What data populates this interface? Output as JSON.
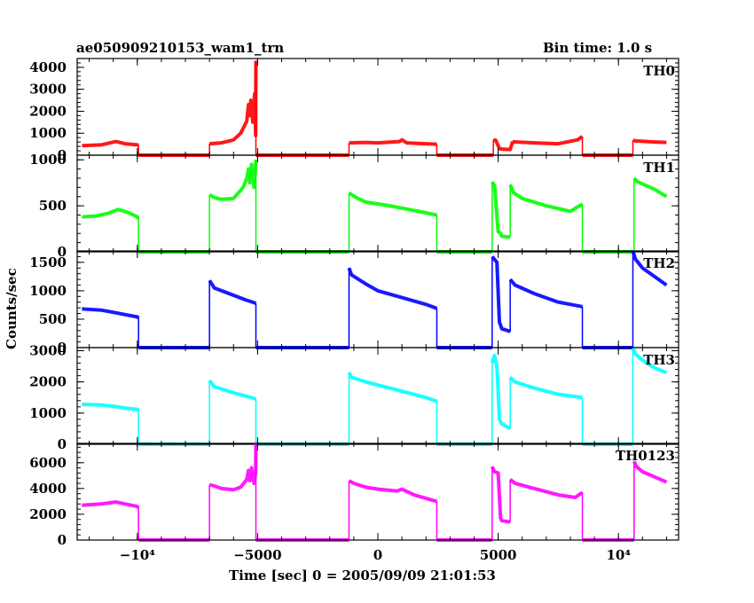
{
  "header": {
    "title": "ae050909210153_wam1_trn",
    "bin_time": "Bin time: 1.0 s"
  },
  "axes": {
    "xlabel": "Time [sec] 0 = 2005/09/09 21:01:53",
    "ylabel": "Counts/sec"
  },
  "colors": {
    "TH0": "#ff0000",
    "TH1": "#00ff00",
    "TH2": "#0000ff",
    "TH3": "#00ffff",
    "TH0123": "#ff00ff",
    "axis": "#000000"
  },
  "chart_data": {
    "type": "line",
    "xlim": [
      -12500,
      12500
    ],
    "x_tick_labels": [
      "−10⁴",
      "−5000",
      "0",
      "5000",
      "10⁴"
    ],
    "x_ticks": [
      -10000,
      -5000,
      0,
      5000,
      10000
    ],
    "panels": [
      {
        "name": "TH0",
        "color": "#ff0000",
        "ylim": [
          0,
          4400
        ],
        "y_ticks": [
          0,
          1000,
          2000,
          3000,
          4000
        ],
        "series": [
          {
            "x": [
              -12300,
              -11500,
              -10900,
              -10500,
              -10000,
              -9950
            ],
            "y": [
              430,
              470,
              620,
              520,
              470,
              450
            ]
          },
          {
            "x": [
              -9950,
              -7000
            ],
            "y": [
              0,
              0
            ]
          },
          {
            "x": [
              -7000,
              -6500,
              -6000,
              -5700,
              -5450,
              -5380,
              -5330,
              -5280,
              -5200,
              -5120,
              -5080,
              -5070
            ],
            "y": [
              520,
              560,
              700,
              1000,
              1550,
              2300,
              1800,
              2500,
              1500,
              2800,
              900,
              4300
            ]
          },
          {
            "x": [
              -5070,
              -1200
            ],
            "y": [
              0,
              0
            ]
          },
          {
            "x": [
              -1200,
              -500,
              0,
              900,
              1000,
              1200,
              2000,
              2450
            ],
            "y": [
              560,
              580,
              560,
              620,
              700,
              560,
              520,
              500
            ]
          },
          {
            "x": [
              2450,
              4800
            ],
            "y": [
              0,
              0
            ]
          },
          {
            "x": [
              4800,
              4900,
              5050,
              5150,
              5500,
              5600
            ],
            "y": [
              700,
              680,
              300,
              280,
              260,
              620
            ]
          },
          {
            "x": [
              5600,
              6500,
              7500,
              8300,
              8500
            ],
            "y": [
              610,
              560,
              520,
              700,
              850
            ]
          },
          {
            "x": [
              8500,
              10600
            ],
            "y": [
              0,
              0
            ]
          },
          {
            "x": [
              10600,
              10700,
              11500,
              12000
            ],
            "y": [
              680,
              650,
              600,
              580
            ]
          }
        ]
      },
      {
        "name": "TH1",
        "color": "#00ff00",
        "ylim": [
          0,
          1050
        ],
        "y_ticks": [
          0,
          500,
          1000
        ],
        "series": [
          {
            "x": [
              -12300,
              -11700,
              -11200,
              -10800,
              -10400,
              -10000,
              -9950
            ],
            "y": [
              380,
              390,
              420,
              460,
              430,
              380,
              360
            ]
          },
          {
            "x": [
              -9950,
              -7000
            ],
            "y": [
              0,
              0
            ]
          },
          {
            "x": [
              -7000,
              -6800,
              -6500,
              -6000,
              -5800,
              -5600,
              -5450,
              -5380,
              -5330,
              -5250,
              -5150,
              -5100,
              -5070
            ],
            "y": [
              620,
              590,
              570,
              580,
              640,
              700,
              800,
              900,
              750,
              950,
              700,
              860,
              1000
            ]
          },
          {
            "x": [
              -5070,
              -1200
            ],
            "y": [
              0,
              0
            ]
          },
          {
            "x": [
              -1200,
              -900,
              -500,
              0,
              500,
              1500,
              2450
            ],
            "y": [
              640,
              590,
              540,
              520,
              500,
              450,
              400
            ]
          },
          {
            "x": [
              2450,
              4750
            ],
            "y": [
              0,
              0
            ]
          },
          {
            "x": [
              4750,
              4850,
              5000,
              5100,
              5150,
              5500
            ],
            "y": [
              760,
              720,
              220,
              200,
              170,
              160
            ]
          },
          {
            "x": [
              5500,
              5650,
              6000,
              7000,
              8000,
              8500
            ],
            "y": [
              730,
              640,
              580,
              500,
              440,
              520
            ]
          },
          {
            "x": [
              8500,
              10650
            ],
            "y": [
              0,
              0
            ]
          },
          {
            "x": [
              10650,
              10800,
              11500,
              12000
            ],
            "y": [
              800,
              760,
              680,
              600
            ]
          }
        ]
      },
      {
        "name": "TH2",
        "color": "#0000ff",
        "ylim": [
          0,
          1700
        ],
        "y_ticks": [
          0,
          500,
          1000,
          1500
        ],
        "series": [
          {
            "x": [
              -12300,
              -11500,
              -11000,
              -10500,
              -10000,
              -9950
            ],
            "y": [
              680,
              660,
              620,
              580,
              540,
              520
            ]
          },
          {
            "x": [
              -9950,
              -7000
            ],
            "y": [
              0,
              0
            ]
          },
          {
            "x": [
              -7000,
              -6800,
              -6000,
              -5500,
              -5070
            ],
            "y": [
              1180,
              1050,
              920,
              840,
              780
            ]
          },
          {
            "x": [
              -5070,
              -1200
            ],
            "y": [
              0,
              0
            ]
          },
          {
            "x": [
              -1200,
              -1100,
              -500,
              0,
              1000,
              2000,
              2450
            ],
            "y": [
              1400,
              1280,
              1120,
              1000,
              880,
              760,
              690
            ]
          },
          {
            "x": [
              2450,
              4750
            ],
            "y": [
              0,
              0
            ]
          },
          {
            "x": [
              4750,
              4850,
              4950,
              5050,
              5150,
              5400,
              5500
            ],
            "y": [
              1600,
              1550,
              1500,
              450,
              330,
              300,
              280
            ]
          },
          {
            "x": [
              5500,
              5700,
              6500,
              7500,
              8500
            ],
            "y": [
              1200,
              1100,
              950,
              800,
              720
            ]
          },
          {
            "x": [
              8500,
              10600
            ],
            "y": [
              0,
              0
            ]
          },
          {
            "x": [
              10600,
              10700,
              11000,
              11500,
              12000
            ],
            "y": [
              1700,
              1560,
              1400,
              1250,
              1100
            ]
          }
        ]
      },
      {
        "name": "TH3",
        "color": "#00ffff",
        "ylim": [
          0,
          3100
        ],
        "y_ticks": [
          0,
          1000,
          2000,
          3000
        ],
        "series": [
          {
            "x": [
              -12300,
              -11500,
              -11000,
              -10500,
              -10000,
              -9950
            ],
            "y": [
              1280,
              1260,
              1220,
              1160,
              1120,
              1080
            ]
          },
          {
            "x": [
              -9950,
              -7000
            ],
            "y": [
              0,
              0
            ]
          },
          {
            "x": [
              -7000,
              -6800,
              -6000,
              -5500,
              -5070
            ],
            "y": [
              2050,
              1850,
              1650,
              1550,
              1450
            ]
          },
          {
            "x": [
              -5070,
              -1200
            ],
            "y": [
              0,
              0
            ]
          },
          {
            "x": [
              -1200,
              -1100,
              -500,
              0,
              1000,
              2000,
              2450
            ],
            "y": [
              2300,
              2150,
              2000,
              1900,
              1700,
              1500,
              1380
            ]
          },
          {
            "x": [
              2450,
              4750
            ],
            "y": [
              0,
              0
            ]
          },
          {
            "x": [
              4750,
              4850,
              4950,
              5050,
              5150,
              5400,
              5500
            ],
            "y": [
              2600,
              2850,
              2500,
              800,
              650,
              550,
              500
            ]
          },
          {
            "x": [
              5500,
              5700,
              6500,
              7500,
              8500
            ],
            "y": [
              2150,
              2000,
              1800,
              1600,
              1500
            ]
          },
          {
            "x": [
              8500,
              10600
            ],
            "y": [
              0,
              0
            ]
          },
          {
            "x": [
              10600,
              10700,
              11000,
              11500,
              12000
            ],
            "y": [
              3100,
              2900,
              2700,
              2450,
              2300
            ]
          }
        ]
      },
      {
        "name": "TH0123",
        "color": "#ff00ff",
        "ylim": [
          0,
          7500
        ],
        "y_ticks": [
          0,
          2000,
          4000,
          6000
        ],
        "series": [
          {
            "x": [
              -12300,
              -11500,
              -10900,
              -10500,
              -10000,
              -9950
            ],
            "y": [
              2700,
              2800,
              2950,
              2800,
              2600,
              2500
            ]
          },
          {
            "x": [
              -9950,
              -7000
            ],
            "y": [
              0,
              0
            ]
          },
          {
            "x": [
              -7000,
              -6800,
              -6500,
              -6000,
              -5700,
              -5450,
              -5380,
              -5320,
              -5250,
              -5150,
              -5080,
              -5070
            ],
            "y": [
              4300,
              4200,
              4000,
              3900,
              4100,
              4700,
              5400,
              4600,
              5600,
              4400,
              5200,
              7800
            ]
          },
          {
            "x": [
              -5070,
              -1200
            ],
            "y": [
              0,
              0
            ]
          },
          {
            "x": [
              -1200,
              -1000,
              -500,
              0,
              800,
              1000,
              1500,
              2450
            ],
            "y": [
              4600,
              4400,
              4100,
              3950,
              3800,
              3950,
              3500,
              3000
            ]
          },
          {
            "x": [
              2450,
              4750
            ],
            "y": [
              0,
              0
            ]
          },
          {
            "x": [
              4750,
              4850,
              5000,
              5100,
              5150,
              5500
            ],
            "y": [
              5700,
              5300,
              5200,
              1700,
              1500,
              1400
            ]
          },
          {
            "x": [
              5500,
              5700,
              6500,
              7500,
              8200,
              8500
            ],
            "y": [
              4700,
              4400,
              4000,
              3500,
              3300,
              3700
            ]
          },
          {
            "x": [
              8500,
              10650
            ],
            "y": [
              0,
              0
            ]
          },
          {
            "x": [
              10650,
              10750,
              11000,
              11500,
              12000
            ],
            "y": [
              6100,
              5700,
              5300,
              4900,
              4500
            ]
          }
        ]
      }
    ]
  }
}
